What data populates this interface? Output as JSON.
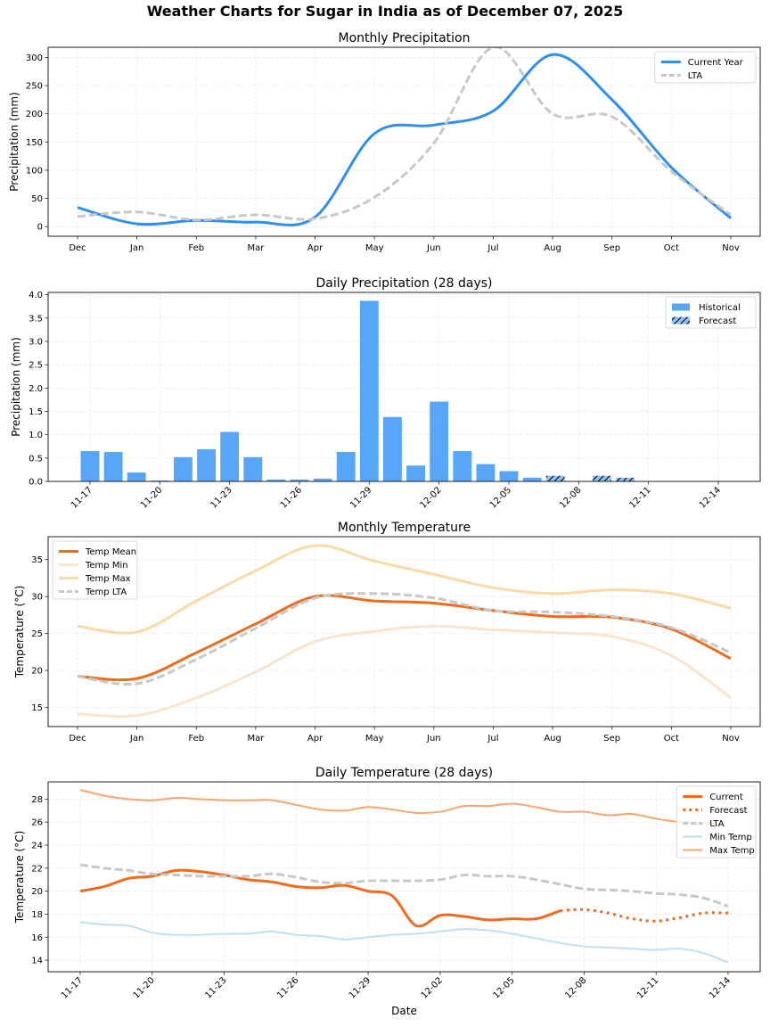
{
  "figure": {
    "title": "Weather Charts for Sugar in India as of December 07, 2025"
  },
  "chart_data": [
    {
      "id": "monthly-precip",
      "type": "line",
      "title": "Monthly Precipitation",
      "xlabel": "",
      "ylabel": "Precipitation (mm)",
      "categories": [
        "Dec",
        "Jan",
        "Feb",
        "Mar",
        "Apr",
        "May",
        "Jun",
        "Jul",
        "Aug",
        "Sep",
        "Oct",
        "Nov"
      ],
      "yticks": [
        0,
        50,
        100,
        150,
        200,
        250,
        300
      ],
      "ylim": [
        -17,
        318
      ],
      "grid": true,
      "legend": "top-right",
      "series": [
        {
          "name": "Current Year",
          "style": "solid",
          "color": "#2f8ff0",
          "width": 3,
          "values": [
            34,
            5,
            11,
            8,
            17,
            165,
            180,
            205,
            305,
            225,
            105,
            15
          ]
        },
        {
          "name": "LTA",
          "style": "dashed",
          "color": "#c8c8c8",
          "width": 3,
          "values": [
            18,
            26,
            12,
            21,
            14,
            52,
            148,
            318,
            200,
            195,
            98,
            21
          ]
        }
      ]
    },
    {
      "id": "daily-precip",
      "type": "bar",
      "title": "Daily Precipitation (28 days)",
      "xlabel": "",
      "ylabel": "Precipitation (mm)",
      "dates": [
        "11-17",
        "11-18",
        "11-19",
        "11-20",
        "11-21",
        "11-22",
        "11-23",
        "11-24",
        "11-25",
        "11-26",
        "11-27",
        "11-28",
        "11-29",
        "11-30",
        "12-01",
        "12-02",
        "12-03",
        "12-04",
        "12-05",
        "12-06",
        "12-07",
        "12-08",
        "12-09",
        "12-10",
        "12-11",
        "12-12",
        "12-13",
        "12-14"
      ],
      "xticks": [
        "11-17",
        "11-20",
        "11-23",
        "11-26",
        "11-29",
        "12-02",
        "12-05",
        "12-08",
        "12-11",
        "12-14"
      ],
      "yticks": [
        0.0,
        0.5,
        1.0,
        1.5,
        2.0,
        2.5,
        3.0,
        3.5,
        4.0
      ],
      "ylim": [
        0,
        4.05
      ],
      "grid": true,
      "legend": "top-right",
      "series": [
        {
          "name": "Historical",
          "color": "#58a6f7",
          "values": [
            0.65,
            0.63,
            0.19,
            0.02,
            0.52,
            0.69,
            1.06,
            0.52,
            0.04,
            0.04,
            0.06,
            0.63,
            3.87,
            1.38,
            0.34,
            1.71,
            0.65,
            0.37,
            0.22,
            0.08,
            null,
            null,
            null,
            null,
            null,
            null,
            null,
            null
          ]
        },
        {
          "name": "Forecast",
          "color": "#8fc1f5",
          "hatch": "////",
          "values": [
            null,
            null,
            null,
            null,
            null,
            null,
            null,
            null,
            null,
            null,
            null,
            null,
            null,
            null,
            null,
            null,
            null,
            null,
            null,
            null,
            0.12,
            0.0,
            0.12,
            0.08,
            0.0,
            0.0,
            0.0,
            0.0
          ]
        }
      ]
    },
    {
      "id": "monthly-temp",
      "type": "line",
      "title": "Monthly Temperature",
      "xlabel": "",
      "ylabel": "Temperature (°C)",
      "categories": [
        "Dec",
        "Jan",
        "Feb",
        "Mar",
        "Apr",
        "May",
        "Jun",
        "Jul",
        "Aug",
        "Sep",
        "Oct",
        "Nov"
      ],
      "yticks": [
        15,
        20,
        25,
        30,
        35
      ],
      "ylim": [
        12.4,
        38.1
      ],
      "grid": true,
      "legend": "top-left",
      "series": [
        {
          "name": "Temp Mean",
          "style": "solid",
          "color": "#f26a1b",
          "width": 3,
          "values": [
            19.2,
            18.9,
            22.4,
            26.3,
            30.0,
            29.4,
            29.1,
            28.1,
            27.3,
            27.2,
            25.6,
            21.6
          ]
        },
        {
          "name": "Temp Min",
          "style": "solid",
          "color": "#fde3cc",
          "width": 3,
          "values": [
            14.1,
            13.9,
            16.3,
            19.8,
            23.9,
            25.3,
            26.0,
            25.5,
            25.1,
            24.6,
            22.0,
            16.3
          ]
        },
        {
          "name": "Temp Max",
          "style": "solid",
          "color": "#fcd9a6",
          "width": 3,
          "values": [
            26.0,
            25.2,
            29.4,
            33.5,
            36.9,
            34.8,
            33.0,
            31.2,
            30.4,
            30.9,
            30.4,
            28.4
          ]
        },
        {
          "name": "Temp LTA",
          "style": "dashed",
          "color": "#c8c8c8",
          "width": 3,
          "values": [
            19.2,
            18.2,
            21.5,
            25.7,
            29.8,
            30.4,
            29.8,
            28.1,
            27.9,
            27.3,
            25.8,
            22.4
          ]
        }
      ]
    },
    {
      "id": "daily-temp",
      "type": "line",
      "title": "Daily Temperature (28 days)",
      "xlabel": "Date",
      "ylabel": "Temperature (°C)",
      "dates": [
        "11-17",
        "11-18",
        "11-19",
        "11-20",
        "11-21",
        "11-22",
        "11-23",
        "11-24",
        "11-25",
        "11-26",
        "11-27",
        "11-28",
        "11-29",
        "11-30",
        "12-01",
        "12-02",
        "12-03",
        "12-04",
        "12-05",
        "12-06",
        "12-07",
        "12-08",
        "12-09",
        "12-10",
        "12-11",
        "12-12",
        "12-13",
        "12-14"
      ],
      "xticks": [
        "11-17",
        "11-20",
        "11-23",
        "11-26",
        "11-29",
        "12-02",
        "12-05",
        "12-08",
        "12-11",
        "12-14"
      ],
      "yticks": [
        14,
        16,
        18,
        20,
        22,
        24,
        26,
        28
      ],
      "ylim": [
        13.0,
        29.5
      ],
      "grid": true,
      "legend": "top-right",
      "series": [
        {
          "name": "Current",
          "style": "solid",
          "color": "#f26a1b",
          "width": 3,
          "values": [
            20.0,
            20.4,
            21.1,
            21.3,
            21.8,
            21.7,
            21.4,
            21.0,
            20.8,
            20.4,
            20.3,
            20.5,
            20.0,
            19.6,
            17.0,
            17.9,
            17.8,
            17.5,
            17.6,
            17.6,
            18.3,
            null,
            null,
            null,
            null,
            null,
            null,
            null
          ]
        },
        {
          "name": "Forecast",
          "style": "dotted",
          "color": "#f26a1b",
          "width": 3,
          "values": [
            null,
            null,
            null,
            null,
            null,
            null,
            null,
            null,
            null,
            null,
            null,
            null,
            null,
            null,
            null,
            null,
            null,
            null,
            null,
            null,
            18.3,
            18.4,
            18.1,
            17.6,
            17.4,
            17.7,
            18.1,
            18.1
          ]
        },
        {
          "name": "LTA",
          "style": "dashed",
          "color": "#c8c8c8",
          "width": 3,
          "values": [
            22.3,
            22.0,
            21.8,
            21.5,
            21.4,
            21.3,
            21.3,
            21.3,
            21.5,
            21.2,
            20.8,
            20.7,
            20.9,
            20.9,
            20.9,
            21.0,
            21.4,
            21.3,
            21.3,
            21.0,
            20.6,
            20.2,
            20.1,
            20.0,
            19.8,
            19.7,
            19.4,
            18.7
          ]
        },
        {
          "name": "Min Temp",
          "style": "solid",
          "color": "#bfe0f7",
          "width": 2,
          "values": [
            17.3,
            17.1,
            17.0,
            16.4,
            16.2,
            16.2,
            16.3,
            16.3,
            16.5,
            16.2,
            16.1,
            15.8,
            16.0,
            16.2,
            16.3,
            16.5,
            16.7,
            16.6,
            16.3,
            15.9,
            15.5,
            15.2,
            15.1,
            15.0,
            14.9,
            15.0,
            14.6,
            13.8
          ]
        },
        {
          "name": "Max Temp",
          "style": "solid",
          "color": "#ffa46e",
          "width": 2,
          "values": [
            28.8,
            28.3,
            28.0,
            27.9,
            28.1,
            28.0,
            27.9,
            27.9,
            27.9,
            27.5,
            27.1,
            27.0,
            27.3,
            27.1,
            26.8,
            26.9,
            27.4,
            27.4,
            27.6,
            27.3,
            26.9,
            26.9,
            26.6,
            26.7,
            26.3,
            26.0,
            25.9,
            25.6
          ]
        }
      ]
    }
  ]
}
